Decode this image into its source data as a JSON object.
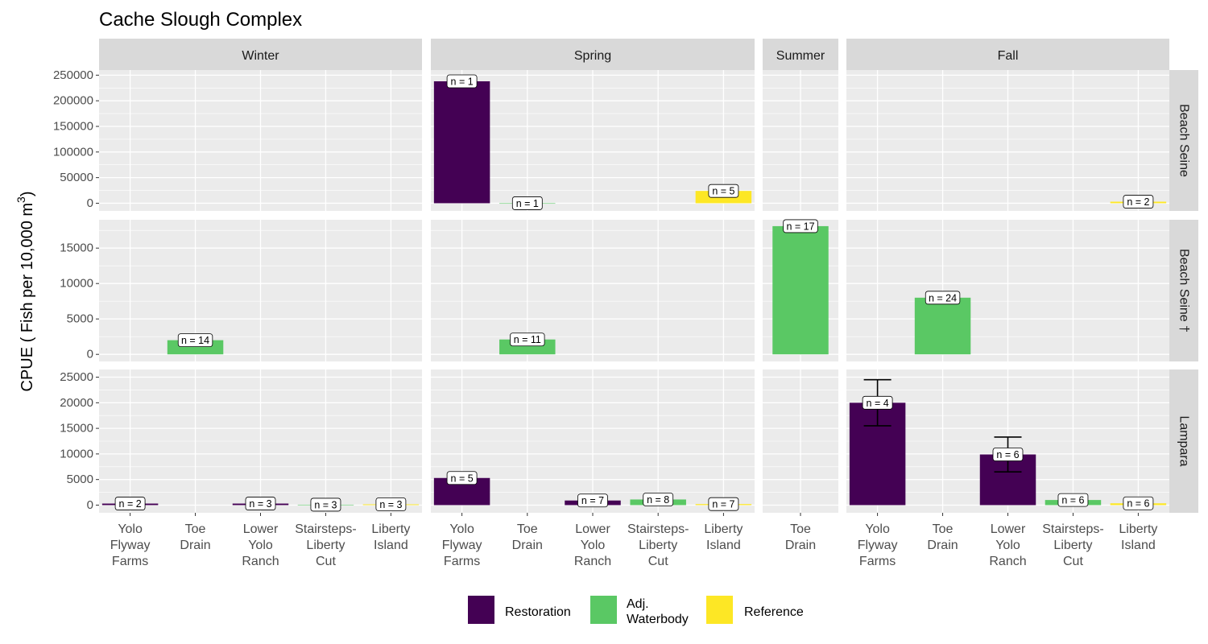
{
  "chart_data": {
    "type": "bar",
    "title": "Cache Slough Complex",
    "ylabel": "CPUE ( Fish per 10,000 m³)",
    "ylabel_parts": {
      "main": "CPUE ( Fish per 10,000 m",
      "sup": "3",
      "end": ")"
    },
    "columns": [
      {
        "name": "Winter",
        "categories": [
          "Yolo Flyway Farms",
          "Toe Drain",
          "Lower Yolo Ranch",
          "Stairsteps-Liberty Cut",
          "Liberty Island"
        ]
      },
      {
        "name": "Spring",
        "categories": [
          "Yolo Flyway Farms",
          "Toe Drain",
          "Lower Yolo Ranch",
          "Stairsteps-Liberty Cut",
          "Liberty Island"
        ]
      },
      {
        "name": "Summer",
        "categories": [
          "Toe Drain"
        ]
      },
      {
        "name": "Fall",
        "categories": [
          "Yolo Flyway Farms",
          "Toe Drain",
          "Lower Yolo Ranch",
          "Stairsteps-Liberty Cut",
          "Liberty Island"
        ]
      }
    ],
    "category_lines": {
      "Yolo Flyway Farms": [
        "Yolo",
        "Flyway",
        "Farms"
      ],
      "Toe Drain": [
        "Toe",
        "Drain"
      ],
      "Lower Yolo Ranch": [
        "Lower",
        "Yolo",
        "Ranch"
      ],
      "Stairsteps-Liberty Cut": [
        "Stairsteps-",
        "Liberty",
        "Cut"
      ],
      "Liberty Island": [
        "Liberty",
        "Island"
      ]
    },
    "rows": [
      {
        "name": "Beach Seine",
        "ylim": [
          -15000,
          260000
        ],
        "yticks": [
          0,
          50000,
          100000,
          150000,
          200000,
          250000
        ],
        "ytick_labels": [
          "0",
          "50000",
          "100000",
          "150000",
          "200000",
          "250000"
        ]
      },
      {
        "name": "Beach Seine †",
        "ylim": [
          -1000,
          19000
        ],
        "yticks": [
          0,
          5000,
          10000,
          15000
        ],
        "ytick_labels": [
          "0",
          "5000",
          "10000",
          "15000"
        ]
      },
      {
        "name": "Lampara",
        "ylim": [
          -1500,
          26500
        ],
        "yticks": [
          0,
          5000,
          10000,
          15000,
          20000,
          25000
        ],
        "ytick_labels": [
          "0",
          "5000",
          "10000",
          "15000",
          "20000",
          "25000"
        ]
      }
    ],
    "legend": {
      "position": "bottom",
      "items": [
        {
          "key": "restoration",
          "label": "Restoration",
          "label_lines": [
            "Restoration"
          ],
          "color": "#440154"
        },
        {
          "key": "adj",
          "label": "Adj. Waterbody",
          "label_lines": [
            "Adj.",
            "Waterbody"
          ],
          "color": "#5ac864"
        },
        {
          "key": "reference",
          "label": "Reference",
          "label_lines": [
            "Reference"
          ],
          "color": "#fde725"
        }
      ]
    },
    "bars": [
      {
        "row": "Beach Seine",
        "col": "Spring",
        "category": "Yolo Flyway Farms",
        "group": "restoration",
        "value": 238000,
        "n_label": "n = 1"
      },
      {
        "row": "Beach Seine",
        "col": "Spring",
        "category": "Toe Drain",
        "group": "adj",
        "value": 0,
        "n_label": "n = 1"
      },
      {
        "row": "Beach Seine",
        "col": "Spring",
        "category": "Liberty Island",
        "group": "reference",
        "value": 24000,
        "err": [
          14000,
          34000
        ],
        "n_label": "n = 5"
      },
      {
        "row": "Beach Seine",
        "col": "Fall",
        "category": "Liberty Island",
        "group": "reference",
        "value": 3000,
        "err": [
          1500,
          4500
        ],
        "n_label": "n = 2"
      },
      {
        "row": "Beach Seine †",
        "col": "Winter",
        "category": "Toe Drain",
        "group": "adj",
        "value": 2000,
        "n_label": "n = 14"
      },
      {
        "row": "Beach Seine †",
        "col": "Spring",
        "category": "Toe Drain",
        "group": "adj",
        "value": 2100,
        "n_label": "n = 11"
      },
      {
        "row": "Beach Seine †",
        "col": "Summer",
        "category": "Toe Drain",
        "group": "adj",
        "value": 18100,
        "n_label": "n = 17"
      },
      {
        "row": "Beach Seine †",
        "col": "Fall",
        "category": "Toe Drain",
        "group": "adj",
        "value": 8000,
        "n_label": "n = 24"
      },
      {
        "row": "Lampara",
        "col": "Winter",
        "category": "Yolo Flyway Farms",
        "group": "restoration",
        "value": 300,
        "err": [
          100,
          700
        ],
        "n_label": "n = 2"
      },
      {
        "row": "Lampara",
        "col": "Winter",
        "category": "Lower Yolo Ranch",
        "group": "restoration",
        "value": 300,
        "err": [
          150,
          600
        ],
        "n_label": "n = 3"
      },
      {
        "row": "Lampara",
        "col": "Winter",
        "category": "Stairsteps-Liberty Cut",
        "group": "adj",
        "value": 80,
        "err": [
          20,
          200
        ],
        "n_label": "n = 3"
      },
      {
        "row": "Lampara",
        "col": "Winter",
        "category": "Liberty Island",
        "group": "reference",
        "value": 150,
        "err": [
          50,
          300
        ],
        "n_label": "n = 3"
      },
      {
        "row": "Lampara",
        "col": "Spring",
        "category": "Yolo Flyway Farms",
        "group": "restoration",
        "value": 5300,
        "err": [
          4200,
          6400
        ],
        "n_label": "n = 5"
      },
      {
        "row": "Lampara",
        "col": "Spring",
        "category": "Lower Yolo Ranch",
        "group": "restoration",
        "value": 900,
        "err": [
          600,
          1200
        ],
        "n_label": "n = 7"
      },
      {
        "row": "Lampara",
        "col": "Spring",
        "category": "Stairsteps-Liberty Cut",
        "group": "adj",
        "value": 1100,
        "err": [
          700,
          1500
        ],
        "n_label": "n = 8"
      },
      {
        "row": "Lampara",
        "col": "Spring",
        "category": "Liberty Island",
        "group": "reference",
        "value": 200,
        "err": [
          50,
          400
        ],
        "n_label": "n = 7"
      },
      {
        "row": "Lampara",
        "col": "Fall",
        "category": "Yolo Flyway Farms",
        "group": "restoration",
        "value": 20000,
        "err": [
          15500,
          24500
        ],
        "n_label": "n = 4"
      },
      {
        "row": "Lampara",
        "col": "Fall",
        "category": "Lower Yolo Ranch",
        "group": "restoration",
        "value": 9900,
        "err": [
          6500,
          13300
        ],
        "n_label": "n = 6"
      },
      {
        "row": "Lampara",
        "col": "Fall",
        "category": "Stairsteps-Liberty Cut",
        "group": "adj",
        "value": 1000,
        "err": [
          700,
          1300
        ],
        "n_label": "n = 6"
      },
      {
        "row": "Lampara",
        "col": "Fall",
        "category": "Liberty Island",
        "group": "reference",
        "value": 350,
        "err": [
          150,
          550
        ],
        "n_label": "n = 6"
      }
    ]
  }
}
